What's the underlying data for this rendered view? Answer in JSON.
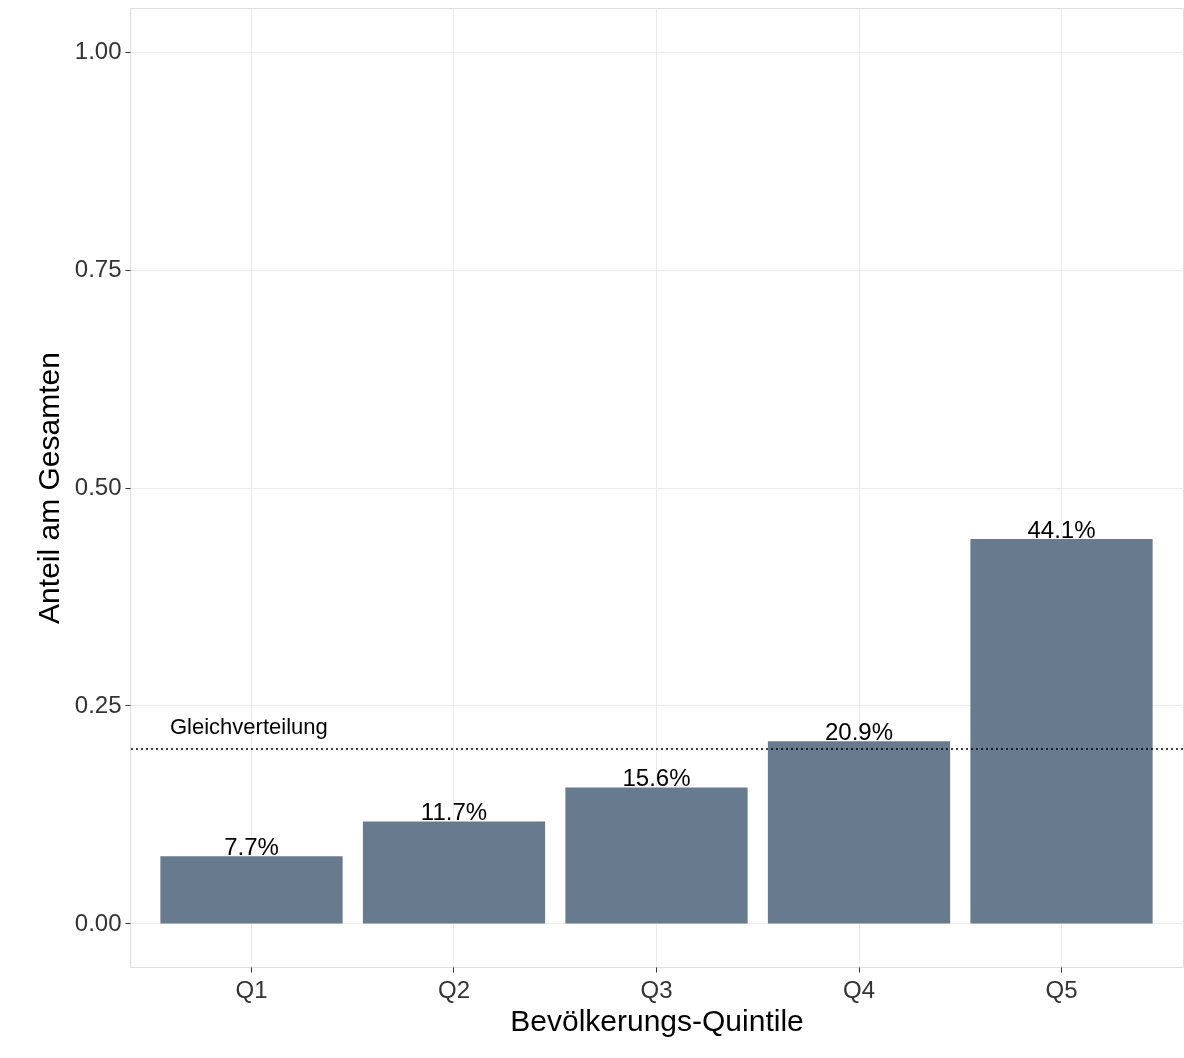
{
  "chart_data": {
    "type": "bar",
    "xlabel": "Bevölkerungs-Quintile",
    "ylabel": "Anteil am Gesamten",
    "categories": [
      "Q1",
      "Q2",
      "Q3",
      "Q4",
      "Q5"
    ],
    "values": [
      0.077,
      0.117,
      0.156,
      0.209,
      0.441
    ],
    "value_labels": [
      "7.7%",
      "11.7%",
      "15.6%",
      "20.9%",
      "44.1%"
    ],
    "color": "#687b8e",
    "ylim": [
      -0.05,
      1.05
    ],
    "yticks": [
      {
        "value": 0,
        "label": "0.00"
      },
      {
        "value": 0.25,
        "label": "0.25"
      },
      {
        "value": 0.5,
        "label": "0.50"
      },
      {
        "value": 0.75,
        "label": "0.75"
      },
      {
        "value": 1,
        "label": "1.00"
      }
    ],
    "ref_lines": [
      {
        "axis": "y",
        "value": 0.2,
        "label": "Gleichverteilung",
        "line_style": "dotted",
        "color": "#000000"
      }
    ],
    "grid": true
  }
}
